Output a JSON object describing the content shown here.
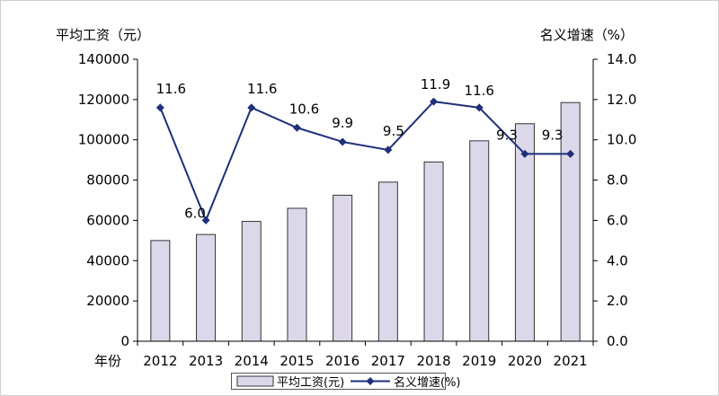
{
  "chart_data": {
    "type": "bar+line",
    "x_axis_title": "年份",
    "categories": [
      "2012",
      "2013",
      "2014",
      "2015",
      "2016",
      "2017",
      "2018",
      "2019",
      "2020",
      "2021"
    ],
    "left_axis": {
      "label": "平均工资（元）",
      "min": 0,
      "max": 140000,
      "ticks": [
        "0",
        "20000",
        "40000",
        "60000",
        "80000",
        "100000",
        "120000",
        "140000"
      ]
    },
    "right_axis": {
      "label": "名义增速（%）",
      "min": 0,
      "max": 14,
      "ticks": [
        "0.0",
        "2.0",
        "4.0",
        "6.0",
        "8.0",
        "10.0",
        "12.0",
        "14.0"
      ]
    },
    "series": [
      {
        "name": "平均工资(元)",
        "type": "bar",
        "axis": "left",
        "color": "#dcd8ea",
        "values": [
          50000,
          53000,
          59500,
          66000,
          72500,
          79000,
          89000,
          99500,
          108000,
          118500
        ]
      },
      {
        "name": "名义增速(%)",
        "type": "line",
        "axis": "right",
        "color": "#1f2f7a",
        "values": [
          11.6,
          6.0,
          11.6,
          10.6,
          9.9,
          9.5,
          11.9,
          11.6,
          9.3,
          9.3
        ],
        "labels": [
          "11.6",
          "6.0",
          "11.6",
          "10.6",
          "9.9",
          "9.5",
          "11.9",
          "11.6",
          "9.3",
          "9.3"
        ]
      }
    ],
    "grid": false,
    "legend_position": "bottom"
  }
}
